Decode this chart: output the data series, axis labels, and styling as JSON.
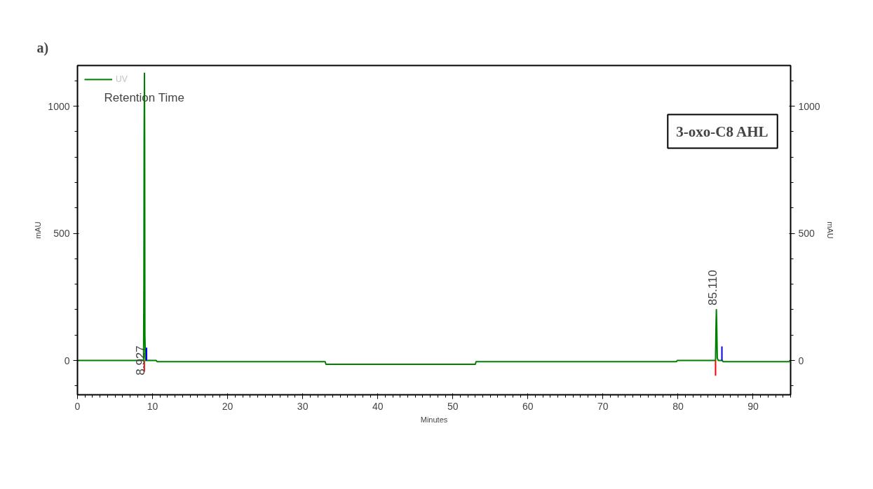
{
  "chart_data": {
    "type": "line",
    "title": "3-oxo-C8 AHL",
    "xlabel": "Minutes",
    "ylabel": "mAU",
    "y2label": "mAU",
    "annotations": [
      "a)",
      "Retention Time",
      {
        "text": "8.927",
        "x": 8.927,
        "y": 0
      },
      {
        "text": "85.110",
        "x": 85.11,
        "y": 200
      }
    ],
    "series": [
      {
        "name": "UV",
        "color": "#008000",
        "x": [
          0,
          8.8,
          8.85,
          8.88,
          8.92,
          8.95,
          8.98,
          9.05,
          10.5,
          10.6,
          33,
          33.1,
          53,
          53.1,
          79.8,
          79.9,
          85.0,
          85.05,
          85.11,
          85.17,
          85.23,
          85.35,
          85.9,
          86.0,
          95
        ],
        "values": [
          0,
          0,
          300,
          865,
          1130,
          865,
          100,
          0,
          0,
          -5,
          -5,
          -15,
          -15,
          -5,
          -5,
          0,
          0,
          120,
          200,
          120,
          10,
          0,
          0,
          -5,
          -5
        ]
      },
      {
        "color": "#ff0000",
        "x": [
          8.9,
          8.9
        ],
        "values": [
          0,
          -45
        ]
      },
      {
        "color": "#0000ff",
        "x": [
          9.2,
          9.2
        ],
        "values": [
          0,
          50
        ]
      },
      {
        "color": "#ff0000",
        "x": [
          85.0,
          85.0
        ],
        "values": [
          0,
          -60
        ]
      },
      {
        "color": "#0000ff",
        "x": [
          85.85,
          85.85
        ],
        "values": [
          0,
          55
        ]
      }
    ],
    "xlim": [
      0,
      95
    ],
    "xticks": [
      0,
      10,
      20,
      30,
      40,
      50,
      60,
      70,
      80,
      90
    ],
    "ylim": [
      -135,
      1160
    ],
    "yticks": [
      0,
      500,
      1000
    ],
    "y2lim": [
      -135,
      1160
    ],
    "y2ticks": [
      0,
      500,
      1000
    ],
    "grid": false,
    "legend": "top left",
    "marker": "none",
    "line_style": "solid"
  }
}
